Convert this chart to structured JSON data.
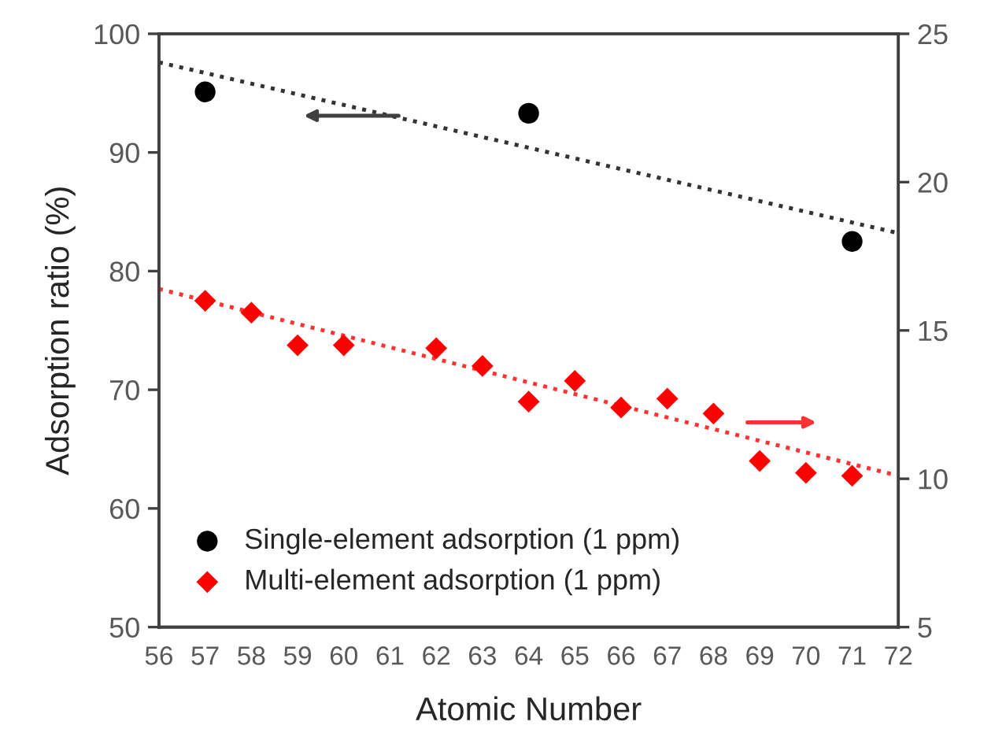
{
  "chart_data": {
    "type": "scatter",
    "xlabel": "Atomic Number",
    "ylabel": "Adsorption ratio (%)",
    "xlim": [
      56,
      72
    ],
    "xticks": [
      56,
      57,
      58,
      59,
      60,
      61,
      62,
      63,
      64,
      65,
      66,
      67,
      68,
      69,
      70,
      71,
      72
    ],
    "ylim": [
      50,
      100
    ],
    "yticks": [
      50,
      60,
      70,
      80,
      90,
      100
    ],
    "y2lim": [
      5,
      25
    ],
    "y2ticks": [
      5,
      10,
      15,
      20,
      25
    ],
    "grid": false,
    "legend": "bottom left",
    "series": [
      {
        "name": "Single-element adsorption (1 ppm)",
        "color": "#000000",
        "marker": "circle",
        "x": [
          57,
          64,
          71
        ],
        "values": [
          95.1,
          93.3,
          82.5
        ]
      },
      {
        "name": "Multi-element adsorption (1 ppm)",
        "color": "#ff0000",
        "marker": "diamond",
        "axis": "y2",
        "x": [
          57,
          58,
          59,
          60,
          62,
          63,
          64,
          65,
          66,
          67,
          68,
          69,
          70,
          71
        ],
        "values": [
          16.0,
          15.6,
          14.5,
          14.5,
          14.4,
          13.8,
          12.6,
          13.3,
          12.4,
          12.7,
          12.2,
          10.6,
          10.2,
          10.1
        ]
      },
      {
        "type": "line",
        "color": "#333333",
        "line_style": "dotted",
        "x": [
          56,
          72
        ],
        "values": [
          97.6,
          83.2
        ]
      },
      {
        "type": "line",
        "color": "#ff3333",
        "line_style": "dotted",
        "axis": "y2",
        "x": [
          56,
          72
        ],
        "values": [
          16.4,
          10.1
        ]
      }
    ]
  }
}
